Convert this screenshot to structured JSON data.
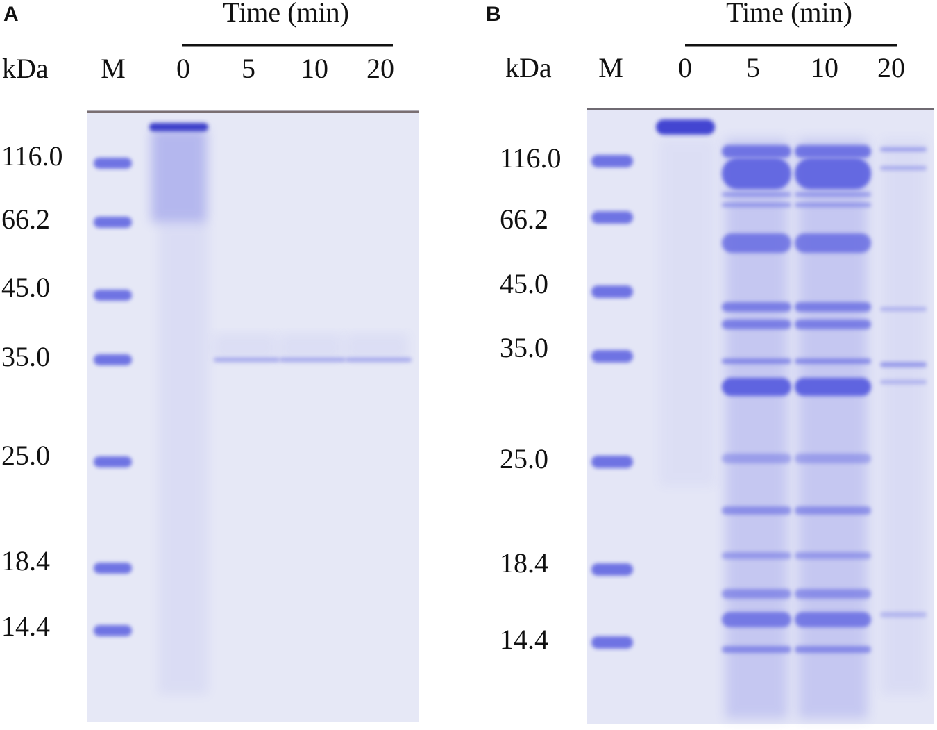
{
  "panels": [
    {
      "label": "A",
      "header": "Time (min)",
      "unit": "kDa",
      "marker_lane": "M",
      "lanes": [
        "0",
        "5",
        "10",
        "20"
      ],
      "markers": [
        "116.0",
        "66.2",
        "45.0",
        "35.0",
        "25.0",
        "18.4",
        "14.4"
      ]
    },
    {
      "label": "B",
      "header": "Time (min)",
      "unit": "kDa",
      "marker_lane": "M",
      "lanes": [
        "0",
        "5",
        "10",
        "20"
      ],
      "markers": [
        "116.0",
        "66.2",
        "45.0",
        "35.0",
        "25.0",
        "18.4",
        "14.4"
      ]
    }
  ]
}
